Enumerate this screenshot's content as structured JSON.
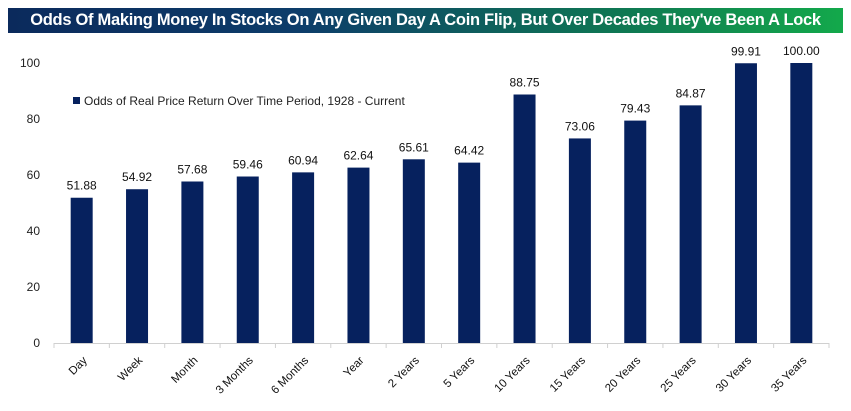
{
  "chart_data": {
    "type": "bar",
    "title": "Odds Of Making Money In Stocks On Any Given Day A Coin Flip, But Over Decades They've Been A Lock",
    "categories": [
      "Day",
      "Week",
      "Month",
      "3 Months",
      "6 Months",
      "Year",
      "2 Years",
      "5 Years",
      "10 Years",
      "15 Years",
      "20 Years",
      "25 Years",
      "30 Years",
      "35 Years"
    ],
    "series": [
      {
        "name": "Odds of Real Price Return Over Time Period, 1928 - Current",
        "values": [
          51.88,
          54.92,
          57.68,
          59.46,
          60.94,
          62.64,
          65.61,
          64.42,
          88.75,
          73.06,
          79.43,
          84.87,
          99.91,
          100.0
        ],
        "labels": [
          "51.88",
          "54.92",
          "57.68",
          "59.46",
          "60.94",
          "62.64",
          "65.61",
          "64.42",
          "88.75",
          "73.06",
          "79.43",
          "84.87",
          "99.91",
          "100.00"
        ]
      }
    ],
    "ylim": [
      0,
      100
    ],
    "yticks": [
      "0",
      "20",
      "40",
      "60",
      "80",
      "100"
    ],
    "xlabel": "",
    "ylabel": "",
    "grid": false,
    "legend": "top-left",
    "colors": {
      "bar": "#06215e",
      "banner_start": "#0b2a5c",
      "banner_end": "#13a94b"
    }
  }
}
